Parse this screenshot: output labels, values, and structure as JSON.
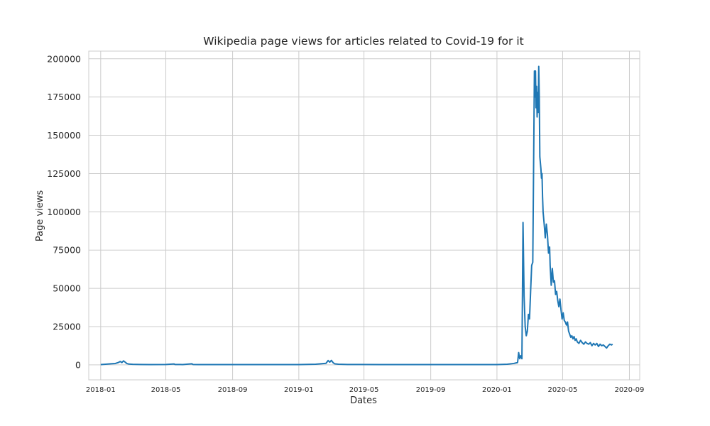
{
  "chart_data": {
    "type": "line",
    "title": "Wikipedia page views for articles related to Covid-19 for it",
    "xlabel": "Dates",
    "ylabel": "Page views",
    "x_range": [
      "2017-12-10",
      "2020-09-20"
    ],
    "ylim": [
      -9800,
      205000
    ],
    "x_ticks": [
      "2018-01",
      "2018-05",
      "2018-09",
      "2019-01",
      "2019-05",
      "2019-09",
      "2020-01",
      "2020-05",
      "2020-09"
    ],
    "x_tick_dates": [
      "2018-01-01",
      "2018-05-01",
      "2018-09-01",
      "2019-01-01",
      "2019-05-01",
      "2019-09-01",
      "2020-01-01",
      "2020-05-01",
      "2020-09-01"
    ],
    "y_ticks": [
      0,
      25000,
      50000,
      75000,
      100000,
      125000,
      150000,
      175000,
      200000
    ],
    "y_tick_labels": [
      "0",
      "25000",
      "50000",
      "75000",
      "100000",
      "125000",
      "150000",
      "175000",
      "200000"
    ],
    "grid": true,
    "line_color": "#1f77b4",
    "series": [
      {
        "x": [
          "2018-01-01",
          "2018-01-10",
          "2018-01-20",
          "2018-01-28",
          "2018-02-03",
          "2018-02-06",
          "2018-02-09",
          "2018-02-12",
          "2018-02-15",
          "2018-02-18",
          "2018-02-22",
          "2018-03-01",
          "2018-03-15",
          "2018-04-01",
          "2018-05-01",
          "2018-05-16",
          "2018-05-18",
          "2018-06-01",
          "2018-06-18",
          "2018-06-20",
          "2018-07-01",
          "2018-09-01",
          "2018-11-01",
          "2019-01-01",
          "2019-02-01",
          "2019-02-20",
          "2019-02-24",
          "2019-02-27",
          "2019-03-02",
          "2019-03-05",
          "2019-03-08",
          "2019-03-15",
          "2019-04-01",
          "2019-06-01",
          "2019-09-01",
          "2019-12-01",
          "2020-01-01",
          "2020-01-20",
          "2020-02-01",
          "2020-02-08",
          "2020-02-10",
          "2020-02-12",
          "2020-02-14",
          "2020-02-16",
          "2020-02-18",
          "2020-02-20",
          "2020-02-22",
          "2020-02-24",
          "2020-02-26",
          "2020-02-28",
          "2020-03-01",
          "2020-03-03",
          "2020-03-05",
          "2020-03-07",
          "2020-03-09",
          "2020-03-10",
          "2020-03-11",
          "2020-03-12",
          "2020-03-13",
          "2020-03-14",
          "2020-03-15",
          "2020-03-16",
          "2020-03-17",
          "2020-03-18",
          "2020-03-19",
          "2020-03-20",
          "2020-03-21",
          "2020-03-22",
          "2020-03-23",
          "2020-03-24",
          "2020-03-25",
          "2020-03-26",
          "2020-03-28",
          "2020-03-30",
          "2020-04-01",
          "2020-04-03",
          "2020-04-05",
          "2020-04-07",
          "2020-04-08",
          "2020-04-10",
          "2020-04-12",
          "2020-04-14",
          "2020-04-16",
          "2020-04-18",
          "2020-04-20",
          "2020-04-22",
          "2020-04-24",
          "2020-04-26",
          "2020-04-28",
          "2020-04-30",
          "2020-05-02",
          "2020-05-04",
          "2020-05-06",
          "2020-05-08",
          "2020-05-10",
          "2020-05-12",
          "2020-05-14",
          "2020-05-16",
          "2020-05-18",
          "2020-05-20",
          "2020-05-22",
          "2020-05-24",
          "2020-05-26",
          "2020-05-28",
          "2020-05-31",
          "2020-06-03",
          "2020-06-06",
          "2020-06-09",
          "2020-06-12",
          "2020-06-15",
          "2020-06-18",
          "2020-06-21",
          "2020-06-24",
          "2020-06-27",
          "2020-06-30",
          "2020-07-03",
          "2020-07-06",
          "2020-07-09",
          "2020-07-12",
          "2020-07-15",
          "2020-07-18",
          "2020-07-21",
          "2020-07-24",
          "2020-07-27",
          "2020-07-30",
          "2020-08-01"
        ],
        "y": [
          200,
          400,
          700,
          900,
          1600,
          2200,
          1500,
          2600,
          1800,
          900,
          500,
          350,
          250,
          200,
          220,
          600,
          250,
          200,
          700,
          250,
          200,
          150,
          180,
          200,
          400,
          1000,
          2800,
          1800,
          2900,
          1500,
          700,
          400,
          250,
          180,
          150,
          180,
          200,
          400,
          900,
          1500,
          8000,
          4000,
          6000,
          4000,
          93000,
          45000,
          25000,
          19000,
          22000,
          33000,
          30000,
          48000,
          65000,
          67000,
          150000,
          192000,
          175000,
          192000,
          168000,
          182000,
          162000,
          178000,
          165000,
          195000,
          175000,
          136000,
          132000,
          128000,
          122000,
          125000,
          110000,
          100000,
          92000,
          83000,
          92000,
          85000,
          73000,
          77000,
          65000,
          52000,
          63000,
          54000,
          55000,
          46000,
          48000,
          42000,
          38000,
          43000,
          36000,
          30000,
          34000,
          29000,
          28000,
          26000,
          28000,
          22000,
          20000,
          18000,
          19000,
          17000,
          18500,
          16000,
          17000,
          15000,
          14000,
          16000,
          14500,
          13500,
          15000,
          14000,
          13500,
          14500,
          12500,
          14000,
          13000,
          14000,
          12000,
          13500,
          12500,
          13000,
          12000,
          11000,
          12500,
          13500,
          13000,
          13500
        ]
      }
    ]
  }
}
